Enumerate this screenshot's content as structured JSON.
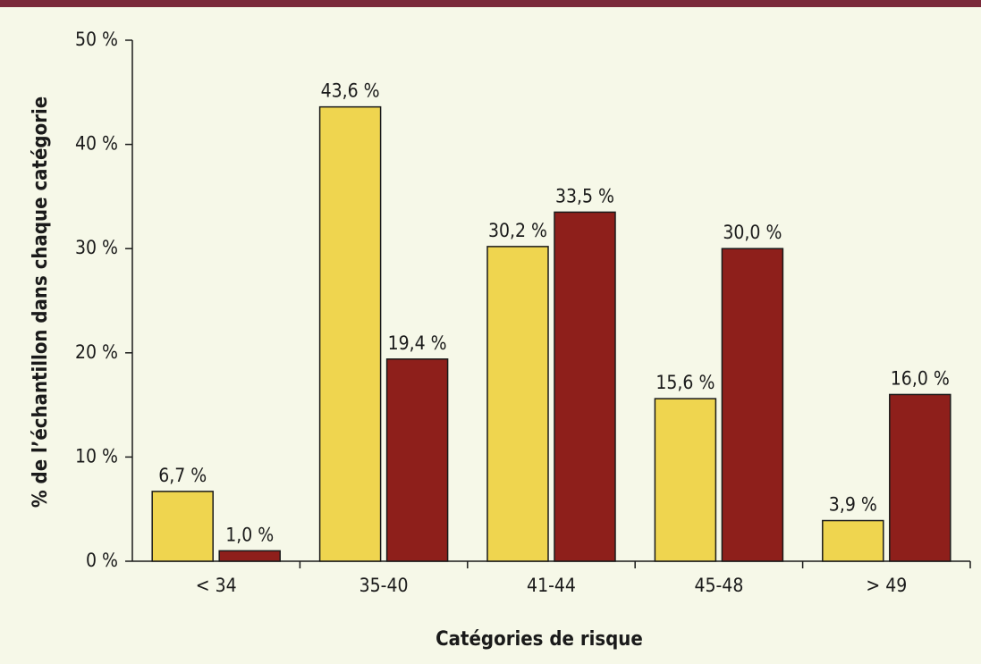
{
  "chart_data": {
    "type": "bar",
    "categories": [
      "< 34",
      "35-40",
      "41-44",
      "45-48",
      "> 49"
    ],
    "series": [
      {
        "color": "#efd54f",
        "values": [
          6.7,
          43.6,
          30.2,
          15.6,
          3.9
        ],
        "value_labels": [
          "6,7 %",
          "43,6 %",
          "30,2 %",
          "15,6 %",
          "3,9 %"
        ]
      },
      {
        "color": "#8e1f1b",
        "values": [
          1.0,
          19.4,
          33.5,
          30.0,
          16.0
        ],
        "value_labels": [
          "1,0 %",
          "19,4 %",
          "33,5 %",
          "30,0 %",
          "16,0 %"
        ]
      }
    ],
    "ylim": [
      0,
      50
    ],
    "yticks": [
      {
        "value": 0,
        "label": "0 %"
      },
      {
        "value": 10,
        "label": "10 %"
      },
      {
        "value": 20,
        "label": "20 %"
      },
      {
        "value": 30,
        "label": "30 %"
      },
      {
        "value": 40,
        "label": "40 %"
      },
      {
        "value": 50,
        "label": "50 %"
      }
    ],
    "x_label": "Catégories de risque",
    "y_label": "% de l’échantillon dans chaque catégorie",
    "grid": false
  }
}
